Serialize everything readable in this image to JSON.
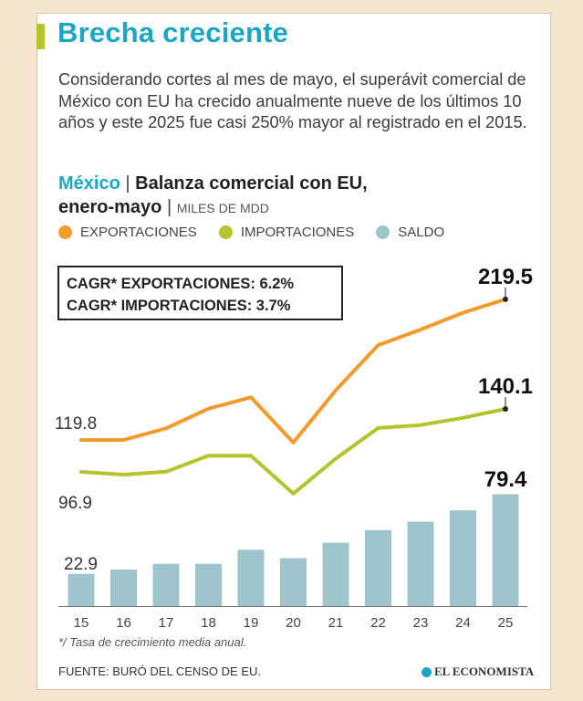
{
  "header": {
    "title": "Brecha creciente",
    "subtitle": "Considerando cortes al mes de mayo, el superávit comercial de México con EU ha crecido anualmente nueve de los últimos 10 años y este 2025 fue casi 250% mayor al registrado en el 2015."
  },
  "heading": {
    "country": "México",
    "separator": "|",
    "name_line1": "Balanza comercial con EU,",
    "name_line2": "enero-mayo",
    "units": "MILES DE MDD"
  },
  "legend": {
    "exports": "EXPORTACIONES",
    "imports": "IMPORTACIONES",
    "balance": "SALDO"
  },
  "cagr": {
    "exports": "CAGR* EXPORTACIONES: 6.2%",
    "imports": "CAGR* IMPORTACIONES: 3.7%"
  },
  "colors": {
    "exports": "#f39a2b",
    "imports": "#b4c42d",
    "balance": "#9ec4cc",
    "title": "#1ba7c4",
    "accent": "#b4c42d"
  },
  "chart_data": {
    "type": "bar+line",
    "categories": [
      "15",
      "16",
      "17",
      "18",
      "19",
      "20",
      "21",
      "22",
      "23",
      "24",
      "25"
    ],
    "series": [
      {
        "name": "EXPORTACIONES",
        "type": "line",
        "values": [
          119.8,
          119.8,
          128,
          142,
          150,
          118,
          155,
          187,
          198,
          210,
          219.5
        ]
      },
      {
        "name": "IMPORTACIONES",
        "type": "line",
        "values": [
          96.9,
          95,
          97,
          108,
          108,
          82,
          106,
          127,
          129,
          134,
          140.1
        ]
      },
      {
        "name": "SALDO",
        "type": "bar",
        "values": [
          22.9,
          26,
          30,
          30,
          40,
          34,
          45,
          54,
          60,
          68,
          79.4
        ]
      }
    ],
    "labels": {
      "exports_first": "119.8",
      "exports_last": "219.5",
      "imports_first": "96.9",
      "imports_last": "140.1",
      "balance_first": "22.9",
      "balance_last": "79.4"
    }
  },
  "footer": {
    "note": "*/ Tasa de crecimiento media anual.",
    "source": "FUENTE: BURÓ DEL CENSO DE EU.",
    "brand": "EL ECONOMISTA"
  }
}
